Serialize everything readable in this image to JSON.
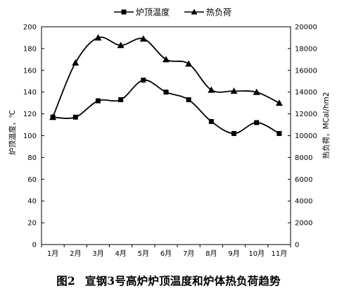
{
  "caption": {
    "number": "图2",
    "text": "宣钢3号高炉炉顶温度和炉体热负荷趋势"
  },
  "chart_data": {
    "type": "line",
    "categories": [
      "1月",
      "2月",
      "3月",
      "4月",
      "5月",
      "6月",
      "7月",
      "8月",
      "9月",
      "10月",
      "11月"
    ],
    "series": [
      {
        "name": "炉顶温度",
        "axis": "left",
        "marker": "square",
        "values": [
          117,
          117,
          132,
          133,
          151,
          140,
          133,
          113,
          102,
          112,
          102
        ]
      },
      {
        "name": "热负荷",
        "axis": "right",
        "marker": "triangle",
        "values": [
          11700,
          16700,
          19000,
          18300,
          18900,
          17000,
          16600,
          14200,
          14100,
          14000,
          13000
        ]
      }
    ],
    "y_left": {
      "label": "炉顶温度，℃",
      "range": [
        0,
        200
      ],
      "ticks": [
        0,
        20,
        40,
        60,
        80,
        100,
        120,
        140,
        160,
        180,
        200
      ]
    },
    "y_right": {
      "label": "热负荷，MCal/hm2",
      "range": [
        0,
        20000
      ],
      "ticks": [
        0,
        2000,
        4000,
        6000,
        8000,
        10000,
        12000,
        14000,
        16000,
        18000,
        20000
      ]
    },
    "grid": false,
    "legend": "top",
    "line_color": "#000000"
  }
}
